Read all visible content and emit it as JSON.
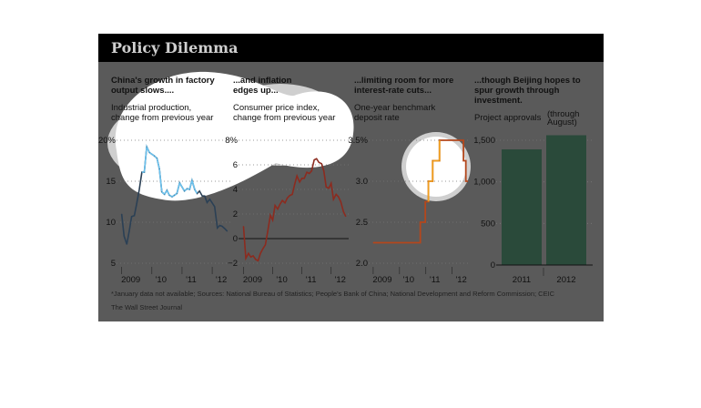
{
  "figure": {
    "title": "Policy Dilemma",
    "footnote": "*January data not available; Sources: National Bureau of Statistics; People's Bank of China; National Development and Reform Commission; CEIC",
    "source": "The Wall Street Journal"
  },
  "panels": [
    {
      "title_lines": [
        "China's growth in factory",
        "output slows...."
      ],
      "sub_lines": [
        "Industrial production,",
        "change from previous year"
      ],
      "yticks": [
        "20%",
        "15",
        "10",
        "5"
      ],
      "xticks": [
        "2009",
        "'10",
        "'11",
        "'12"
      ]
    },
    {
      "title_lines": [
        "...and inflation",
        "edges up..."
      ],
      "sub_lines": [
        "Consumer price index,",
        "change from previous year"
      ],
      "yticks": [
        "8%",
        "6",
        "4",
        "2",
        "0",
        "−2"
      ],
      "xticks": [
        "2009",
        "'10",
        "'11",
        "'12"
      ]
    },
    {
      "title_lines": [
        "...limiting room for more",
        "interest-rate cuts..."
      ],
      "sub_lines": [
        "One-year benchmark",
        "deposit rate"
      ],
      "yticks": [
        "3.5%",
        "3.0",
        "2.5",
        "2.0"
      ],
      "xticks": [
        "2009",
        "'10",
        "'11",
        "'12"
      ]
    },
    {
      "title_lines": [
        "...though Beijing hopes to",
        "spur growth through",
        "investment."
      ],
      "sub_lines": [
        "Project approvals"
      ],
      "note_lines": [
        "(through",
        "August)"
      ],
      "yticks": [
        "1,500",
        "1,000",
        "500",
        "0"
      ],
      "xticks": [
        "2011",
        "2012"
      ]
    }
  ],
  "colors": {
    "ip_line": "#2b4055",
    "ip_highlight": "#6cc3ef",
    "cpi_line": "#8c2b1f",
    "rate_line": "#b4471c",
    "rate_highlight": "#f0a020",
    "bar": "#2a4a3a",
    "zero_line": "#111111"
  },
  "chart_data": [
    {
      "type": "line",
      "title": "China's growth in factory output slows....",
      "ylabel": "Industrial production, change from previous year",
      "ylim": [
        5,
        20
      ],
      "xlim": [
        2008.83,
        2012.6
      ],
      "x": [
        2009.0,
        2009.08,
        2009.17,
        2009.25,
        2009.33,
        2009.42,
        2009.5,
        2009.58,
        2009.67,
        2009.75,
        2009.83,
        2009.92,
        2010.08,
        2010.17,
        2010.25,
        2010.33,
        2010.42,
        2010.5,
        2010.58,
        2010.67,
        2010.75,
        2010.83,
        2010.92,
        2011.08,
        2011.17,
        2011.25,
        2011.33,
        2011.42,
        2011.5,
        2011.58,
        2011.67,
        2011.75,
        2011.83,
        2011.92,
        2012.08,
        2012.17,
        2012.25,
        2012.33,
        2012.42,
        2012.5
      ],
      "y": [
        11.0,
        8.3,
        7.3,
        8.9,
        10.7,
        10.8,
        12.3,
        13.9,
        16.1,
        16.1,
        19.2,
        18.5,
        18.1,
        17.8,
        16.5,
        13.7,
        13.4,
        13.9,
        13.3,
        13.1,
        13.3,
        13.5,
        14.8,
        13.8,
        14.1,
        14.0,
        15.1,
        14.0,
        13.5,
        13.8,
        13.2,
        13.2,
        12.4,
        12.8,
        11.9,
        9.3,
        9.6,
        9.5,
        9.2,
        8.9
      ],
      "highlight_range": [
        2009.67,
        2011.5
      ]
    },
    {
      "type": "line",
      "title": "...and inflation edges up...",
      "ylabel": "Consumer price index, change from previous year",
      "ylim": [
        -2,
        8
      ],
      "xlim": [
        2008.83,
        2012.6
      ],
      "x": [
        2009.0,
        2009.08,
        2009.17,
        2009.25,
        2009.33,
        2009.42,
        2009.5,
        2009.58,
        2009.67,
        2009.75,
        2009.83,
        2009.92,
        2010.0,
        2010.08,
        2010.17,
        2010.25,
        2010.33,
        2010.42,
        2010.5,
        2010.58,
        2010.67,
        2010.75,
        2010.83,
        2010.92,
        2011.0,
        2011.08,
        2011.17,
        2011.25,
        2011.33,
        2011.42,
        2011.5,
        2011.58,
        2011.67,
        2011.75,
        2011.83,
        2011.92,
        2012.0,
        2012.08,
        2012.17,
        2012.25,
        2012.33,
        2012.42,
        2012.5
      ],
      "y": [
        1.0,
        -1.6,
        -1.2,
        -1.5,
        -1.4,
        -1.7,
        -1.8,
        -1.2,
        -0.8,
        -0.5,
        0.6,
        1.9,
        1.5,
        2.7,
        2.4,
        2.8,
        3.1,
        2.9,
        3.3,
        3.5,
        3.6,
        4.4,
        5.1,
        4.6,
        4.9,
        4.9,
        5.4,
        5.3,
        5.5,
        6.4,
        6.5,
        6.2,
        6.1,
        5.5,
        4.2,
        4.1,
        4.5,
        3.2,
        3.6,
        3.4,
        3.0,
        2.2,
        1.8
      ]
    },
    {
      "type": "line",
      "title": "...limiting room for more interest-rate cuts...",
      "ylabel": "One-year benchmark deposit rate",
      "ylim": [
        2.0,
        3.5
      ],
      "xlim": [
        2008.83,
        2012.6
      ],
      "x": [
        2009.0,
        2010.79,
        2010.79,
        2010.98,
        2010.98,
        2011.1,
        2011.1,
        2011.26,
        2011.26,
        2011.52,
        2011.52,
        2012.43,
        2012.43,
        2012.52,
        2012.52,
        2012.6
      ],
      "y": [
        2.25,
        2.25,
        2.5,
        2.5,
        2.75,
        2.75,
        3.0,
        3.0,
        3.25,
        3.25,
        3.5,
        3.5,
        3.25,
        3.25,
        3.0,
        3.0
      ],
      "highlight_range": [
        2011.0,
        2012.3
      ]
    },
    {
      "type": "bar",
      "title": "...though Beijing hopes to spur growth through investment.",
      "ylabel": "Project approvals",
      "ylim": [
        0,
        1500
      ],
      "categories": [
        "2011",
        "2012"
      ],
      "values": [
        1390,
        1560
      ]
    }
  ]
}
